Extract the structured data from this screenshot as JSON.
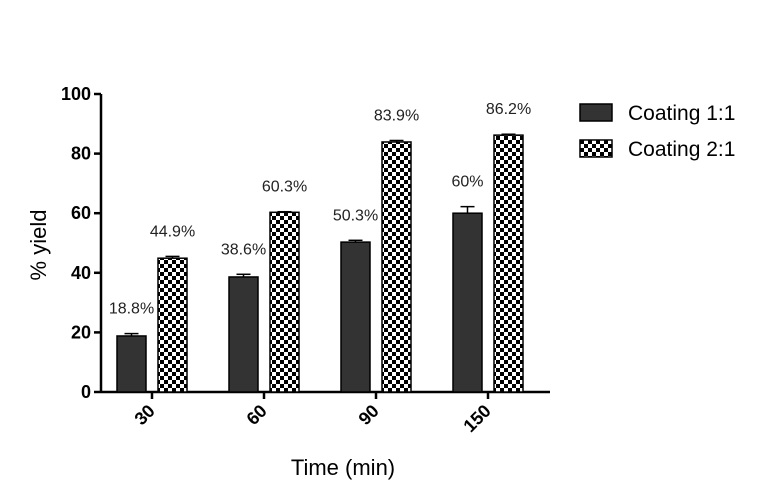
{
  "chart_data": {
    "type": "bar",
    "title": "",
    "xlabel": "Time (min)",
    "ylabel": "% yield",
    "ylim": [
      0,
      100
    ],
    "yticks": [
      0,
      20,
      40,
      60,
      80,
      100
    ],
    "categories": [
      "30",
      "60",
      "90",
      "150"
    ],
    "series": [
      {
        "name": "Coating 1:1",
        "pattern": "solid",
        "color": "#333333",
        "values": [
          18.8,
          38.6,
          50.3,
          60
        ],
        "errors": [
          0.8,
          0.9,
          0.6,
          2.2
        ],
        "labels": [
          "18.8%",
          "38.6%",
          "50.3%",
          "60%"
        ]
      },
      {
        "name": "Coating 2:1",
        "pattern": "checker",
        "color": "#000000",
        "values": [
          44.9,
          60.3,
          83.9,
          86.2
        ],
        "errors": [
          0.6,
          0.2,
          0.5,
          0.3
        ],
        "labels": [
          "44.9%",
          "60.3%",
          "83.9%",
          "86.2%"
        ]
      }
    ],
    "legend_position": "top-right",
    "grid": false
  }
}
